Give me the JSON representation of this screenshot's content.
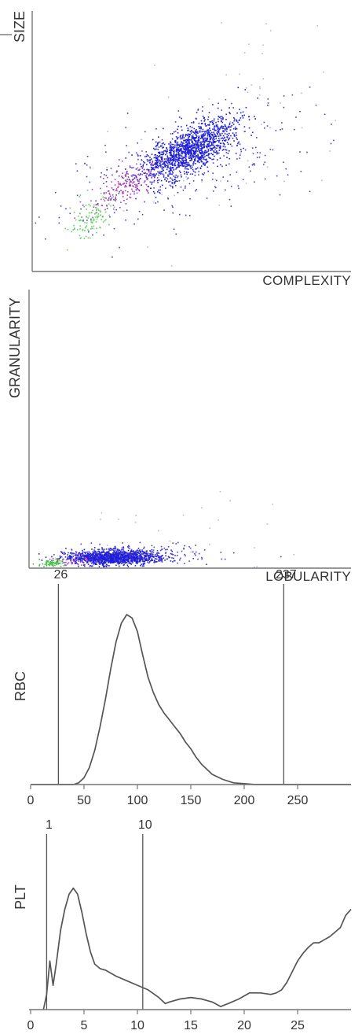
{
  "chart_data": [
    {
      "type": "scatter",
      "xlabel": "COMPLEXITY",
      "ylabel": "SIZE",
      "xlim": [
        0,
        100
      ],
      "ylim": [
        0,
        100
      ],
      "grid": false,
      "populations": [
        {
          "color": "#1f1fd8",
          "center": [
            49,
            47
          ],
          "spread": [
            7.5,
            4.5
          ],
          "tilt": 0.55,
          "count": 1400
        },
        {
          "color": "#4a3fd0",
          "center": [
            46,
            40
          ],
          "spread": [
            20,
            10
          ],
          "tilt": 0.35,
          "count": 320
        },
        {
          "color": "#b43cb0",
          "center": [
            29,
            33
          ],
          "spread": [
            5,
            3.5
          ],
          "tilt": 0.7,
          "count": 170
        },
        {
          "color": "#5fd35f",
          "center": [
            18,
            20
          ],
          "spread": [
            4,
            4
          ],
          "tilt": 0.6,
          "count": 110
        },
        {
          "color": "#b7b7e6",
          "center": [
            60,
            55
          ],
          "spread": [
            22,
            22
          ],
          "tilt": 0.3,
          "count": 60
        }
      ]
    },
    {
      "type": "scatter",
      "xlabel": "LOBULARITY",
      "ylabel": "GRANULARITY",
      "xlim": [
        0,
        100
      ],
      "ylim": [
        0,
        100
      ],
      "grid": false,
      "populations": [
        {
          "color": "#1f1fd8",
          "center": [
            26,
            3.5
          ],
          "spread": [
            7,
            1.3
          ],
          "tilt": 0.0,
          "count": 1300
        },
        {
          "color": "#4a3fd0",
          "center": [
            34,
            4.5
          ],
          "spread": [
            12,
            2.2
          ],
          "tilt": 0.0,
          "count": 200
        },
        {
          "color": "#b43cb0",
          "center": [
            12,
            2.5
          ],
          "spread": [
            4,
            1.0
          ],
          "tilt": 0.0,
          "count": 40
        },
        {
          "color": "#3fbf3f",
          "center": [
            6,
            1.5
          ],
          "spread": [
            2,
            0.8
          ],
          "tilt": 0.0,
          "count": 60
        },
        {
          "color": "#b7b7e6",
          "center": [
            45,
            10
          ],
          "spread": [
            25,
            10
          ],
          "tilt": 0.0,
          "count": 25
        }
      ]
    },
    {
      "type": "line",
      "ylabel": "RBC",
      "xlim": [
        0,
        300
      ],
      "ylim": [
        0,
        100
      ],
      "xticks": [
        0,
        50,
        100,
        150,
        200,
        250
      ],
      "xtick_labels": [
        "0",
        "50",
        "100",
        "150",
        "200",
        "250"
      ],
      "thresholds": [
        {
          "value": 26,
          "label": "26"
        },
        {
          "value": 237,
          "label": "237"
        }
      ],
      "x": [
        0,
        20,
        30,
        40,
        45,
        50,
        55,
        60,
        65,
        70,
        75,
        80,
        85,
        90,
        95,
        100,
        105,
        110,
        115,
        120,
        125,
        130,
        135,
        140,
        145,
        150,
        155,
        160,
        170,
        180,
        190,
        200,
        210,
        300
      ],
      "y": [
        0,
        0,
        0,
        0,
        1,
        4,
        10,
        20,
        34,
        50,
        68,
        84,
        95,
        100,
        98,
        90,
        76,
        63,
        54,
        47,
        42,
        38,
        34,
        30,
        25,
        21,
        16,
        12,
        6,
        3,
        1,
        0.5,
        0,
        0
      ]
    },
    {
      "type": "line",
      "ylabel": "PLT",
      "xlim": [
        0,
        30
      ],
      "ylim": [
        0,
        100
      ],
      "xticks": [
        0,
        5,
        10,
        15,
        20,
        25
      ],
      "xtick_labels": [
        "0",
        "5",
        "10",
        "15",
        "20",
        "25"
      ],
      "thresholds": [
        {
          "value": 1.5,
          "label": "1"
        },
        {
          "value": 10.5,
          "label": "10"
        }
      ],
      "x": [
        1.2,
        1.5,
        1.8,
        2.1,
        2.4,
        2.8,
        3.2,
        3.6,
        4.0,
        4.4,
        4.8,
        5.2,
        5.6,
        6.0,
        6.5,
        7.0,
        8.0,
        9.0,
        10.0,
        11.0,
        12.0,
        12.6,
        13.0,
        14.0,
        15.0,
        16.0,
        17.0,
        17.8,
        18.5,
        19.5,
        20.5,
        21.5,
        22.5,
        23.0,
        23.5,
        24.0,
        24.5,
        25.0,
        25.5,
        26.0,
        26.5,
        27.0,
        27.5,
        28.0,
        28.5,
        29.0,
        29.5,
        30.0
      ],
      "y": [
        0,
        10,
        32,
        16,
        30,
        52,
        66,
        76,
        80,
        76,
        64,
        50,
        38,
        30,
        27,
        26,
        22,
        19,
        16,
        13,
        8,
        4,
        5,
        7,
        8,
        7,
        5,
        2,
        4,
        7,
        11,
        11,
        10,
        11,
        13,
        18,
        25,
        32,
        37,
        41,
        44,
        44,
        46,
        48,
        51,
        54,
        62,
        66
      ]
    }
  ]
}
